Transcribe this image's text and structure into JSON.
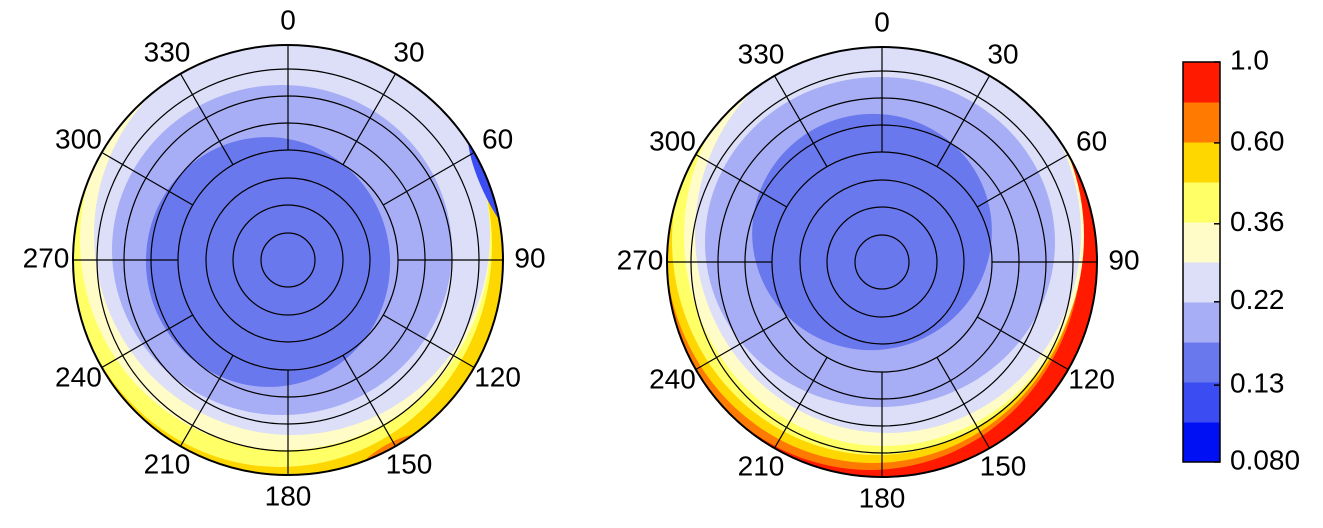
{
  "chart_data": [
    {
      "type": "polar-contour",
      "thetaticks": [
        0,
        30,
        60,
        90,
        120,
        150,
        180,
        210,
        240,
        270,
        300,
        330
      ]
    },
    {
      "type": "polar-contour",
      "thetaticks": [
        0,
        30,
        60,
        90,
        120,
        150,
        180,
        210,
        240,
        270,
        300,
        330
      ]
    }
  ],
  "colorbar": {
    "log": true,
    "lim": [
      0.08,
      1.0
    ],
    "ticks": [
      {
        "value": 1.0,
        "label": "1.0"
      },
      {
        "value": 0.6,
        "label": "0.60"
      },
      0.36,
      0.22,
      0.13,
      {
        "value": 0.08,
        "label": "0.080"
      }
    ],
    "colors": [
      "#0010f5",
      "#3b4cf2",
      "#6a78ee",
      "#a7aef5",
      "#dcdff7",
      "#fffcc8",
      "#ffff66",
      "#ffd700",
      "#ff7a00",
      "#ff1a00"
    ]
  }
}
